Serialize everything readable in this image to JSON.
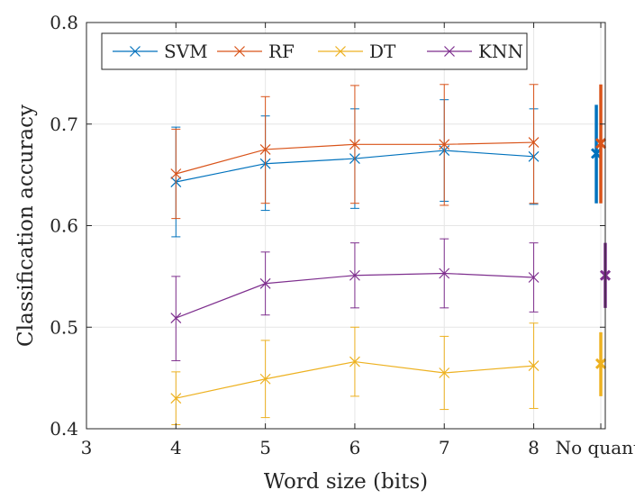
{
  "chart_data": {
    "type": "line",
    "xlabel": "Word size (bits)",
    "ylabel": "Classification accuracy",
    "xlim": [
      3,
      8.8
    ],
    "ylim": [
      0.4,
      0.8
    ],
    "x_ticks": [
      "3",
      "4",
      "5",
      "6",
      "7",
      "8"
    ],
    "extra_x_tick": {
      "x": 8.75,
      "label": "No quant."
    },
    "y_ticks": [
      "0.4",
      "0.5",
      "0.6",
      "0.7",
      "0.8"
    ],
    "grid": true,
    "legend": {
      "placement": "top-left",
      "orientation": "horizontal"
    },
    "x": [
      4,
      5,
      6,
      7,
      8
    ],
    "series": [
      {
        "name": "SVM",
        "color": "#0072BD",
        "values": [
          0.643,
          0.661,
          0.666,
          0.674,
          0.668
        ],
        "error": [
          [
            0.589,
            0.697
          ],
          [
            0.615,
            0.708
          ],
          [
            0.617,
            0.715
          ],
          [
            0.624,
            0.724
          ],
          [
            0.621,
            0.715
          ]
        ],
        "no_quant": {
          "x": 8.7,
          "value": 0.671,
          "error": [
            0.622,
            0.719
          ]
        }
      },
      {
        "name": "RF",
        "color": "#D95319",
        "values": [
          0.651,
          0.675,
          0.68,
          0.68,
          0.682
        ],
        "error": [
          [
            0.607,
            0.695
          ],
          [
            0.622,
            0.727
          ],
          [
            0.622,
            0.738
          ],
          [
            0.62,
            0.739
          ],
          [
            0.622,
            0.739
          ]
        ],
        "no_quant": {
          "x": 8.75,
          "value": 0.681,
          "error": [
            0.622,
            0.739
          ]
        }
      },
      {
        "name": "DT",
        "color": "#EDB120",
        "values": [
          0.43,
          0.449,
          0.466,
          0.455,
          0.462
        ],
        "error": [
          [
            0.404,
            0.456
          ],
          [
            0.411,
            0.487
          ],
          [
            0.432,
            0.5
          ],
          [
            0.419,
            0.491
          ],
          [
            0.42,
            0.504
          ]
        ],
        "no_quant": {
          "x": 8.75,
          "value": 0.464,
          "error": [
            0.432,
            0.495
          ]
        }
      },
      {
        "name": "KNN",
        "color": "#7E2F8E",
        "values": [
          0.509,
          0.543,
          0.551,
          0.553,
          0.549
        ],
        "error": [
          [
            0.467,
            0.55
          ],
          [
            0.512,
            0.574
          ],
          [
            0.519,
            0.583
          ],
          [
            0.519,
            0.587
          ],
          [
            0.515,
            0.583
          ]
        ],
        "no_quant": {
          "x": 8.8,
          "value": 0.551,
          "error": [
            0.519,
            0.583
          ]
        }
      }
    ]
  }
}
